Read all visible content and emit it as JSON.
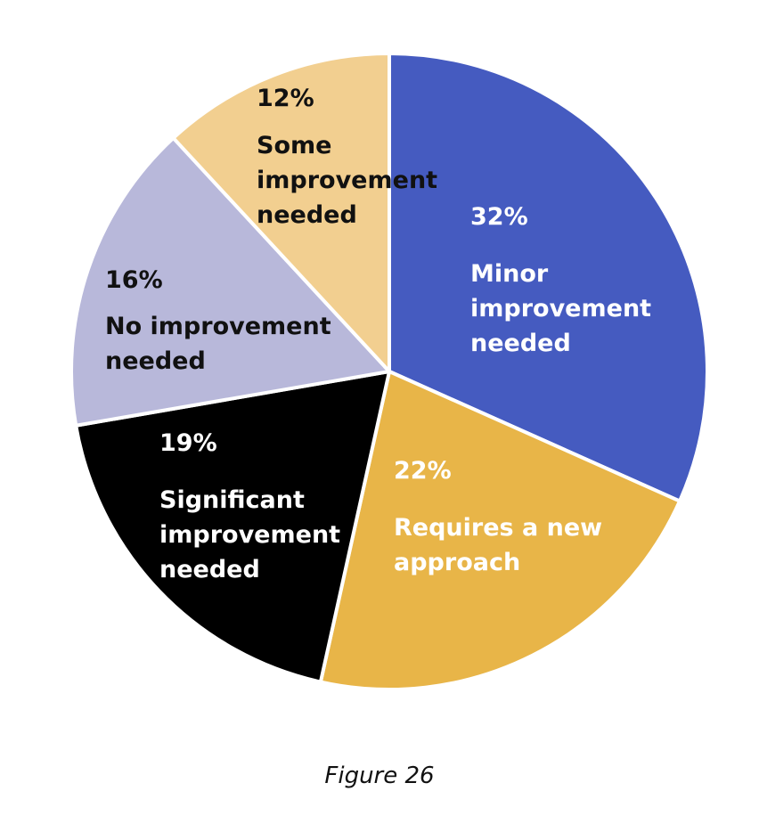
{
  "caption": "Figure 26",
  "chart_data": {
    "type": "pie",
    "start_angle_deg": 0,
    "direction": "clockwise",
    "slices": [
      {
        "percent_label": "32%",
        "value": 32,
        "label_lines": [
          "Minor",
          "improvement",
          "needed"
        ],
        "color": "#455bc0",
        "text_color": "#ffffff"
      },
      {
        "percent_label": "22%",
        "value": 22,
        "label_lines": [
          "Requires a new",
          "approach"
        ],
        "color": "#e8b548",
        "text_color": "#ffffff"
      },
      {
        "percent_label": "19%",
        "value": 19,
        "label_lines": [
          "Significant",
          "improvement",
          "needed"
        ],
        "color": "#000000",
        "text_color": "#ffffff"
      },
      {
        "percent_label": "16%",
        "value": 16,
        "label_lines": [
          "No improvement",
          "needed"
        ],
        "color": "#b8b8da",
        "text_color": "#111111"
      },
      {
        "percent_label": "12%",
        "value": 12,
        "label_lines": [
          "Some",
          "improvement",
          "needed"
        ],
        "color": "#f2cf90",
        "text_color": "#111111"
      }
    ]
  }
}
